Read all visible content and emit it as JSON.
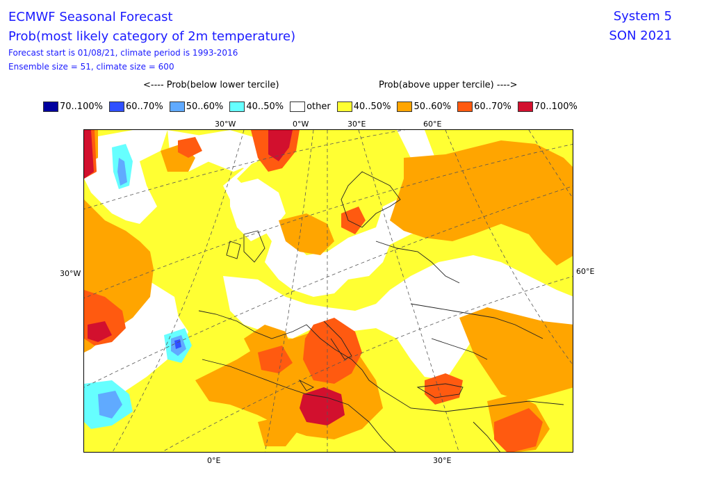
{
  "header": {
    "title": "ECMWF Seasonal Forecast",
    "subtitle": "Prob(most likely category of 2m temperature)",
    "forecast_start": "Forecast start is 01/08/21, climate period is 1993-2016",
    "ensemble": "Ensemble size = 51, climate size = 600",
    "system": "System 5",
    "season": "SON 2021"
  },
  "hints": {
    "below": "<---- Prob(below lower tercile)",
    "above": "Prob(above upper tercile) ---->"
  },
  "legend": [
    {
      "label": "70..100%",
      "color": "#00009e"
    },
    {
      "label": "60..70%",
      "color": "#3050ff"
    },
    {
      "label": "50..60%",
      "color": "#60aaff"
    },
    {
      "label": "40..50%",
      "color": "#66ffff"
    },
    {
      "label": "other",
      "color": "#ffffff"
    },
    {
      "label": "40..50%",
      "color": "#ffff33"
    },
    {
      "label": "50..60%",
      "color": "#ffa500"
    },
    {
      "label": "60..70%",
      "color": "#ff5a10"
    },
    {
      "label": "70..100%",
      "color": "#d2102e"
    }
  ],
  "grid_labels": {
    "top_30w": "30°W",
    "top_0w": "0°W",
    "top_30e": "30°E",
    "top_60e": "60°E",
    "left_30w": "30°W",
    "right_60e": "60°E",
    "bottom_0e": "0°E",
    "bottom_30e": "30°E"
  }
}
